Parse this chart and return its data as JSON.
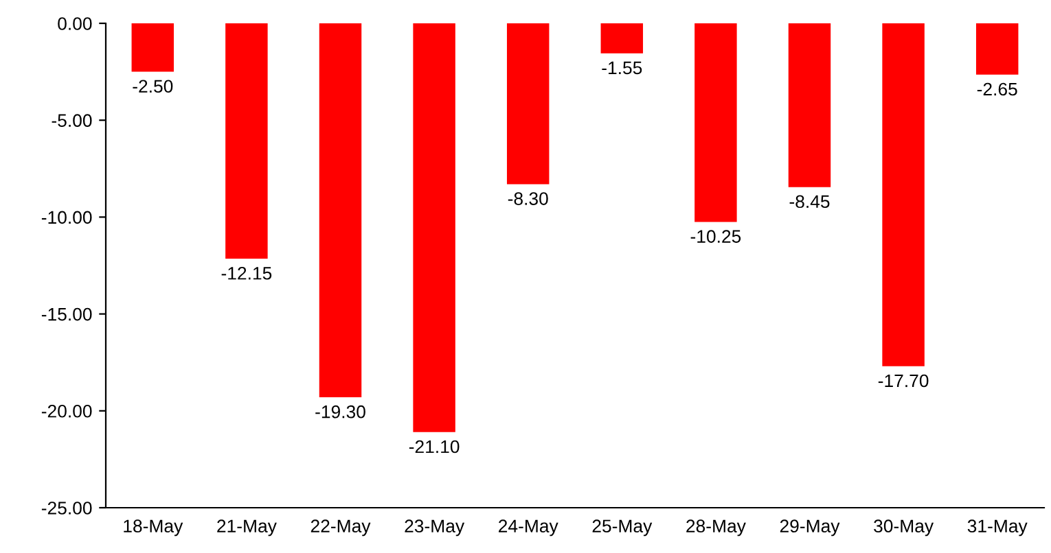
{
  "chart_data": {
    "type": "bar",
    "categories": [
      "18-May",
      "21-May",
      "22-May",
      "23-May",
      "24-May",
      "25-May",
      "28-May",
      "29-May",
      "30-May",
      "31-May"
    ],
    "values": [
      -2.5,
      -12.15,
      -19.3,
      -21.1,
      -8.3,
      -1.55,
      -10.25,
      -8.45,
      -17.7,
      -2.65
    ],
    "value_labels": [
      "-2.50",
      "-12.15",
      "-19.30",
      "-21.10",
      "-8.30",
      "-1.55",
      "-10.25",
      "-8.45",
      "-17.70",
      "-2.65"
    ],
    "color": "#ff0000",
    "ylim": [
      -25,
      0
    ],
    "yticks": [
      {
        "value": -25,
        "label": "-25.00"
      },
      {
        "value": -20,
        "label": "-20.00"
      },
      {
        "value": -15,
        "label": "-15.00"
      },
      {
        "value": -10,
        "label": "-10.00"
      },
      {
        "value": -5,
        "label": "-5.00"
      },
      {
        "value": 0,
        "label": "0.00"
      }
    ],
    "grid": false
  }
}
